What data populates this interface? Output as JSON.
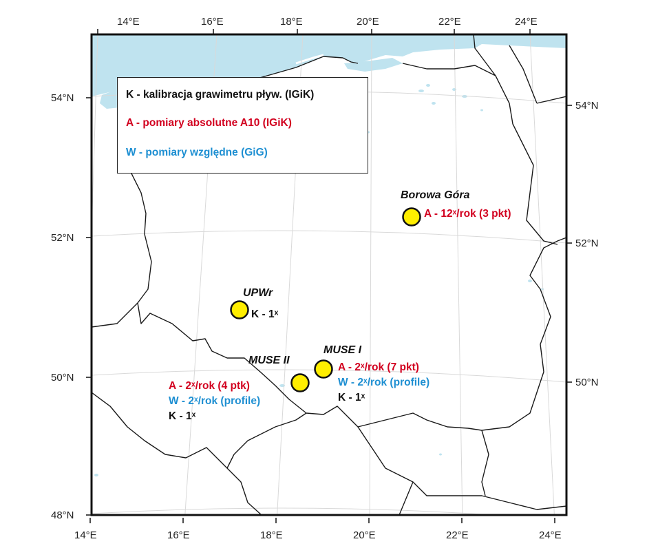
{
  "colors": {
    "water": "#bfe3ef",
    "border": "#1a1a1a",
    "grid": "#d7d7d7",
    "station_fill": "#ffee00",
    "k_text": "#111111",
    "a_text": "#d2001f",
    "w_text": "#1e8fd2"
  },
  "legend": {
    "k": "K - kalibracja grawimetru pływ. (IGiK)",
    "a": "A - pomiary absolutne A10 (IGiK)",
    "w": "W - pomiary względne (GiG)"
  },
  "axes": {
    "bottom": [
      "14°E",
      "16°E",
      "18°E",
      "20°E",
      "22°E",
      "24°E"
    ],
    "top": [
      "14°E",
      "16°E",
      "18°E",
      "20°E",
      "22°E",
      "24°E"
    ],
    "left": [
      "54°N",
      "52°N",
      "50°N",
      "48°N"
    ],
    "right": [
      "54°N",
      "52°N",
      "50°N"
    ]
  },
  "stations": [
    {
      "name": "Borowa Góra",
      "lon": 21.0,
      "lat": 52.3,
      "notes": [
        {
          "type": "A",
          "text": "A - 12ˣ/rok (3 pkt)"
        }
      ]
    },
    {
      "name": "UPWr",
      "lon": 17.2,
      "lat": 51.0,
      "notes": [
        {
          "type": "K",
          "text": "K - 1ˣ"
        }
      ]
    },
    {
      "name": "MUSE I",
      "lon": 19.0,
      "lat": 50.1,
      "notes": [
        {
          "type": "A",
          "text": "A - 2ˣ/rok (7 pkt)"
        },
        {
          "type": "W",
          "text": "W - 2ˣ/rok (profile)"
        },
        {
          "type": "K",
          "text": "K - 1ˣ"
        }
      ]
    },
    {
      "name": "MUSE II",
      "lon": 18.5,
      "lat": 49.9,
      "notes": [
        {
          "type": "A",
          "text": "A - 2ˣ/rok (4 ptk)"
        },
        {
          "type": "W",
          "text": "W - 2ˣ/rok (profile)"
        },
        {
          "type": "K",
          "text": "K - 1ˣ"
        }
      ]
    }
  ]
}
